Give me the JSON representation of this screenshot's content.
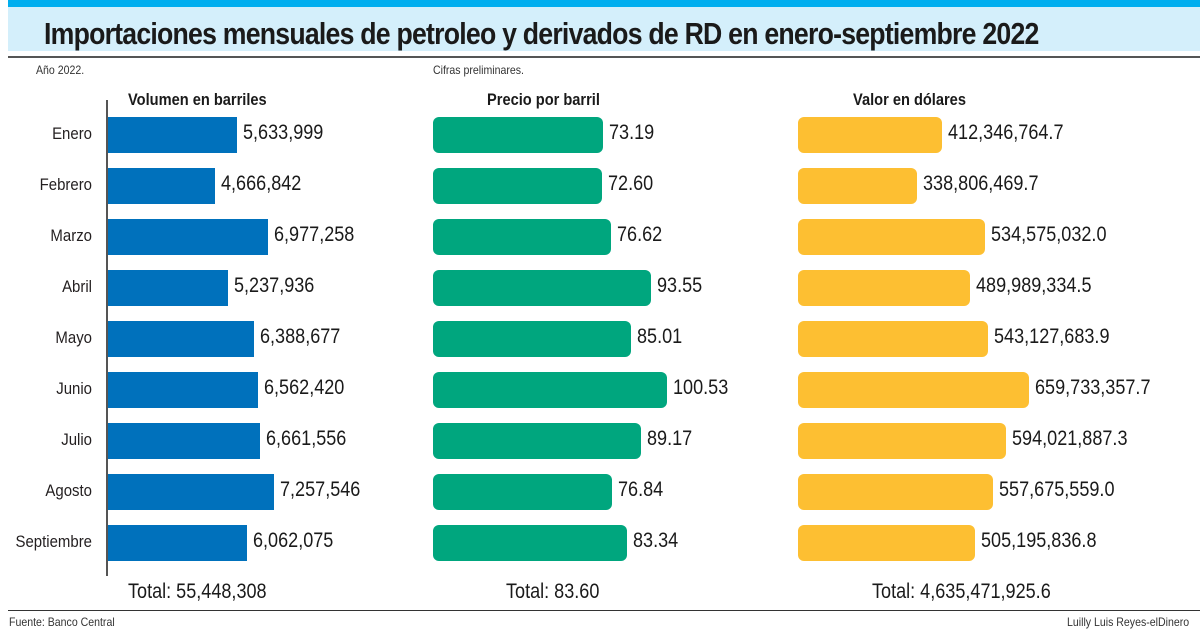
{
  "header": {
    "title": "Importaciones mensuales de petroleo y derivados de RD en enero-septiembre 2022"
  },
  "notes": {
    "year": "Año 2022.",
    "preliminary": "Cifras preliminares."
  },
  "footer": {
    "source": "Fuente: Banco Central",
    "credit": "Luilly Luis Reyes-elDinero"
  },
  "colors": {
    "volume": "#0071bc",
    "price": "#00a67e",
    "value": "#fdbf32",
    "header_band": "#d4effb",
    "header_stripe": "#00aeef"
  },
  "chart_data": [
    {
      "type": "bar",
      "orientation": "horizontal",
      "title": "Volumen en barriles",
      "categories": [
        "Enero",
        "Febrero",
        "Marzo",
        "Abril",
        "Mayo",
        "Junio",
        "Julio",
        "Agosto",
        "Septiembre"
      ],
      "values": [
        5633999,
        4666842,
        6977258,
        5237936,
        6388677,
        6562420,
        6661556,
        7257546,
        6062075
      ],
      "labels": [
        "5,633,999",
        "4,666,842",
        "6,977,258",
        "5,237,936",
        "6,388,677",
        "6,562,420",
        "6,661,556",
        "7,257,546",
        "6,062,075"
      ],
      "total_label": "Total: 55,448,308",
      "xlim": [
        0,
        7257546
      ],
      "grid": false,
      "legend": "none"
    },
    {
      "type": "bar",
      "orientation": "horizontal",
      "title": "Precio por barril",
      "categories": [
        "Enero",
        "Febrero",
        "Marzo",
        "Abril",
        "Mayo",
        "Junio",
        "Julio",
        "Agosto",
        "Septiembre"
      ],
      "values": [
        73.19,
        72.6,
        76.62,
        93.55,
        85.01,
        100.53,
        89.17,
        76.84,
        83.34
      ],
      "labels": [
        "73.19",
        "72.60",
        "76.62",
        "93.55",
        "85.01",
        "100.53",
        "89.17",
        "76.84",
        "83.34"
      ],
      "total_label": "Total: 83.60",
      "xlim": [
        0,
        100.53
      ],
      "grid": false,
      "legend": "none"
    },
    {
      "type": "bar",
      "orientation": "horizontal",
      "title": "Valor en dólares",
      "categories": [
        "Enero",
        "Febrero",
        "Marzo",
        "Abril",
        "Mayo",
        "Junio",
        "Julio",
        "Agosto",
        "Septiembre"
      ],
      "values": [
        412346764.7,
        338806469.7,
        534575032.0,
        489989334.5,
        543127683.9,
        659733357.7,
        594021887.3,
        557675559.0,
        505195836.8
      ],
      "labels": [
        "412,346,764.7",
        "338,806,469.7",
        "534,575,032.0",
        "489,989,334.5",
        "543,127,683.9",
        "659,733,357.7",
        "594,021,887.3",
        "557,675,559.0",
        "505,195,836.8"
      ],
      "total_label": "Total:  4,635,471,925.6",
      "xlim": [
        0,
        659733357.7
      ],
      "grid": false,
      "legend": "none"
    }
  ]
}
